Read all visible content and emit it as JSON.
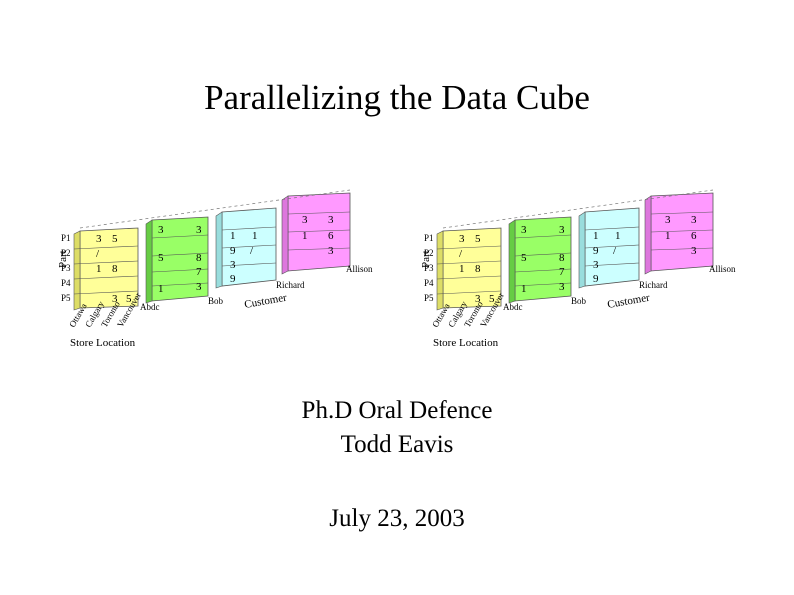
{
  "slide": {
    "title": "Parallelizing the Data Cube",
    "subtitle_line1": "Ph.D Oral Defence",
    "subtitle_line2": "Todd Eavis",
    "date": "July 23, 2003"
  },
  "cube": {
    "axis_part": "Part",
    "part_labels": [
      "P1",
      "P2",
      "P3",
      "P4",
      "P5"
    ],
    "axis_customer": "Customer",
    "customer_labels": [
      "Abdc",
      "Bob",
      "Richard",
      "Allison"
    ],
    "axis_store": "Store Location",
    "store_labels": [
      "Ottawa",
      "Calgary",
      "Toronto",
      "Vancouver"
    ],
    "slab_colors": [
      "#ffff99",
      "#99ff66",
      "#ccffff",
      "#ff99ff"
    ],
    "yellow_cells": [
      [
        "3",
        "5"
      ],
      [
        "/",
        ""
      ],
      [
        "1",
        "8"
      ],
      [
        "",
        ""
      ],
      [
        "3",
        "5"
      ]
    ],
    "green_cells": [
      [
        "3",
        "3"
      ],
      [
        "",
        ""
      ],
      [
        "5",
        "8"
      ],
      [
        "",
        "7"
      ],
      [
        "1",
        "3"
      ]
    ],
    "cyan_cells": [
      [
        "1",
        "1"
      ],
      [
        "9",
        "/"
      ],
      [
        "3",
        ""
      ],
      [
        "9",
        ""
      ]
    ],
    "pink_cells": [
      [
        "3",
        "3"
      ],
      [
        "1",
        "6"
      ],
      [
        "",
        "3"
      ]
    ]
  }
}
